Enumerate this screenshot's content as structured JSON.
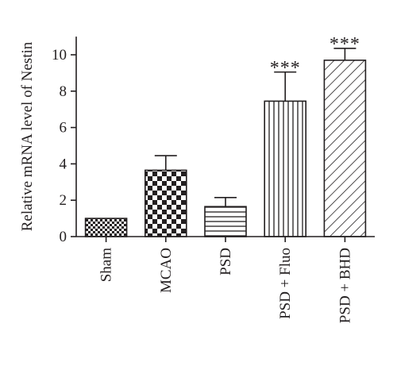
{
  "chart_data": {
    "type": "bar",
    "title": "",
    "xlabel": "",
    "ylabel": "Relative mRNA level of Nestin",
    "ylim": [
      0,
      11
    ],
    "yticks": [
      0,
      2,
      4,
      6,
      8,
      10
    ],
    "grid": false,
    "categories": [
      "Sham",
      "MCAO",
      "PSD",
      "PSD + Fluo",
      "PSD + BHD"
    ],
    "values": [
      1.0,
      3.65,
      1.65,
      7.45,
      9.7
    ],
    "errors": [
      0.0,
      0.8,
      0.5,
      1.6,
      0.65
    ],
    "patterns": [
      "small-checker",
      "large-checker",
      "horizontal-lines",
      "vertical-lines",
      "diagonal-lines"
    ],
    "annotations": [
      "",
      "",
      "",
      "***",
      "***"
    ],
    "colors": {
      "ink": "#231f20",
      "fill": "#ffffff"
    }
  }
}
